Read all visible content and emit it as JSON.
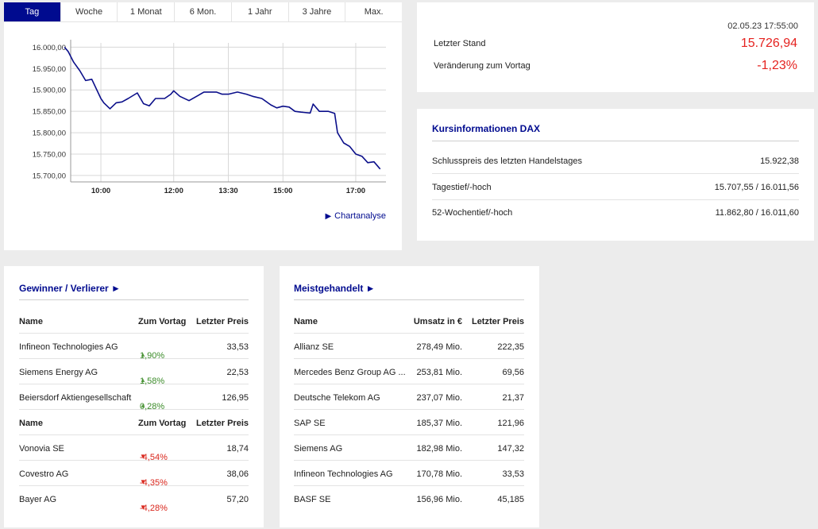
{
  "tabs": [
    "Tag",
    "Woche",
    "1 Monat",
    "6 Mon.",
    "1 Jahr",
    "3 Jahre",
    "Max."
  ],
  "chart_link": "Chartanalyse",
  "chart_data": {
    "type": "line",
    "ylim": [
      15685,
      16010
    ],
    "yticks": [
      16000,
      15950,
      15900,
      15850,
      15800,
      15750,
      15700
    ],
    "ytick_labels": [
      "16.000,00",
      "15.950,00",
      "15.900,00",
      "15.850,00",
      "15.800,00",
      "15.750,00",
      "15.700,00"
    ],
    "xticks": [
      10.0,
      12.0,
      13.5,
      15.0,
      17.0
    ],
    "xtick_labels": [
      "10:00",
      "12:00",
      "13:30",
      "15:00",
      "17:00"
    ],
    "xlim": [
      9.17,
      17.83
    ],
    "series": [
      {
        "x": [
          9.0,
          9.1,
          9.25,
          9.42,
          9.58,
          9.75,
          10.0,
          10.08,
          10.25,
          10.42,
          10.58,
          10.75,
          11.0,
          11.17,
          11.33,
          11.5,
          11.75,
          11.92,
          12.0,
          12.17,
          12.42,
          12.67,
          12.83,
          13.0,
          13.17,
          13.33,
          13.5,
          13.75,
          14.0,
          14.17,
          14.42,
          14.67,
          14.83,
          15.0,
          15.17,
          15.33,
          15.5,
          15.75,
          15.83,
          16.0,
          16.25,
          16.42,
          16.5,
          16.67,
          16.83,
          17.0,
          17.17,
          17.33,
          17.5,
          17.67
        ],
        "y": [
          16000,
          15990,
          15965,
          15945,
          15922,
          15925,
          15880,
          15870,
          15856,
          15870,
          15872,
          15880,
          15893,
          15868,
          15863,
          15880,
          15880,
          15890,
          15898,
          15885,
          15875,
          15887,
          15895,
          15895,
          15895,
          15890,
          15890,
          15895,
          15890,
          15885,
          15880,
          15865,
          15858,
          15862,
          15860,
          15850,
          15848,
          15846,
          15867,
          15850,
          15850,
          15845,
          15800,
          15776,
          15768,
          15750,
          15745,
          15730,
          15732,
          15715
        ]
      }
    ]
  },
  "quote": {
    "timestamp": "02.05.23 17:55:00",
    "last_label": "Letzter Stand",
    "last_value": "15.726,94",
    "change_label": "Veränderung zum Vortag",
    "change_value": "-1,23%"
  },
  "info": {
    "title": "Kursinformationen DAX",
    "rows": [
      {
        "label": "Schlusspreis des letzten Handelstages",
        "value": "15.922,38"
      },
      {
        "label": "Tagestief/-hoch",
        "value": "15.707,55 / 16.011,56"
      },
      {
        "label": "52-Wochentief/-hoch",
        "value": "11.862,80 / 16.011,60"
      }
    ]
  },
  "gainers": {
    "title": "Gewinner / Verlierer ►",
    "headers": [
      "Name",
      "Zum Vortag",
      "Letzter Preis"
    ],
    "winners": [
      {
        "name": "Infineon Technologies AG",
        "change": "1,90%",
        "price": "33,53"
      },
      {
        "name": "Siemens Energy AG",
        "change": "1,58%",
        "price": "22,53"
      },
      {
        "name": "Beiersdorf Aktiengesellschaft",
        "change": "0,28%",
        "price": "126,95"
      }
    ],
    "losers": [
      {
        "name": "Vonovia SE",
        "change": "-4,54%",
        "price": "18,74"
      },
      {
        "name": "Covestro AG",
        "change": "-4,35%",
        "price": "38,06"
      },
      {
        "name": "Bayer AG",
        "change": "-4,28%",
        "price": "57,20"
      }
    ]
  },
  "most_traded": {
    "title": "Meistgehandelt ►",
    "headers": [
      "Name",
      "Umsatz in €",
      "Letzter Preis"
    ],
    "rows": [
      {
        "name": "Allianz SE",
        "volume": "278,49 Mio.",
        "price": "222,35"
      },
      {
        "name": "Mercedes Benz Group AG ...",
        "volume": "253,81 Mio.",
        "price": "69,56"
      },
      {
        "name": "Deutsche Telekom AG",
        "volume": "237,07 Mio.",
        "price": "21,37"
      },
      {
        "name": "SAP SE",
        "volume": "185,37 Mio.",
        "price": "121,96"
      },
      {
        "name": "Siemens AG",
        "volume": "182,98 Mio.",
        "price": "147,32"
      },
      {
        "name": "Infineon Technologies AG",
        "volume": "170,78 Mio.",
        "price": "33,53"
      },
      {
        "name": "BASF SE",
        "volume": "156,96 Mio.",
        "price": "45,185"
      }
    ]
  },
  "colors": {
    "accent": "#000b8f",
    "negative": "#e5221f",
    "positive": "#3c8c2a",
    "background": "#ececec"
  },
  "icons": {
    "up": "triangle-up-icon",
    "down": "triangle-down-icon",
    "link": "play-icon"
  }
}
